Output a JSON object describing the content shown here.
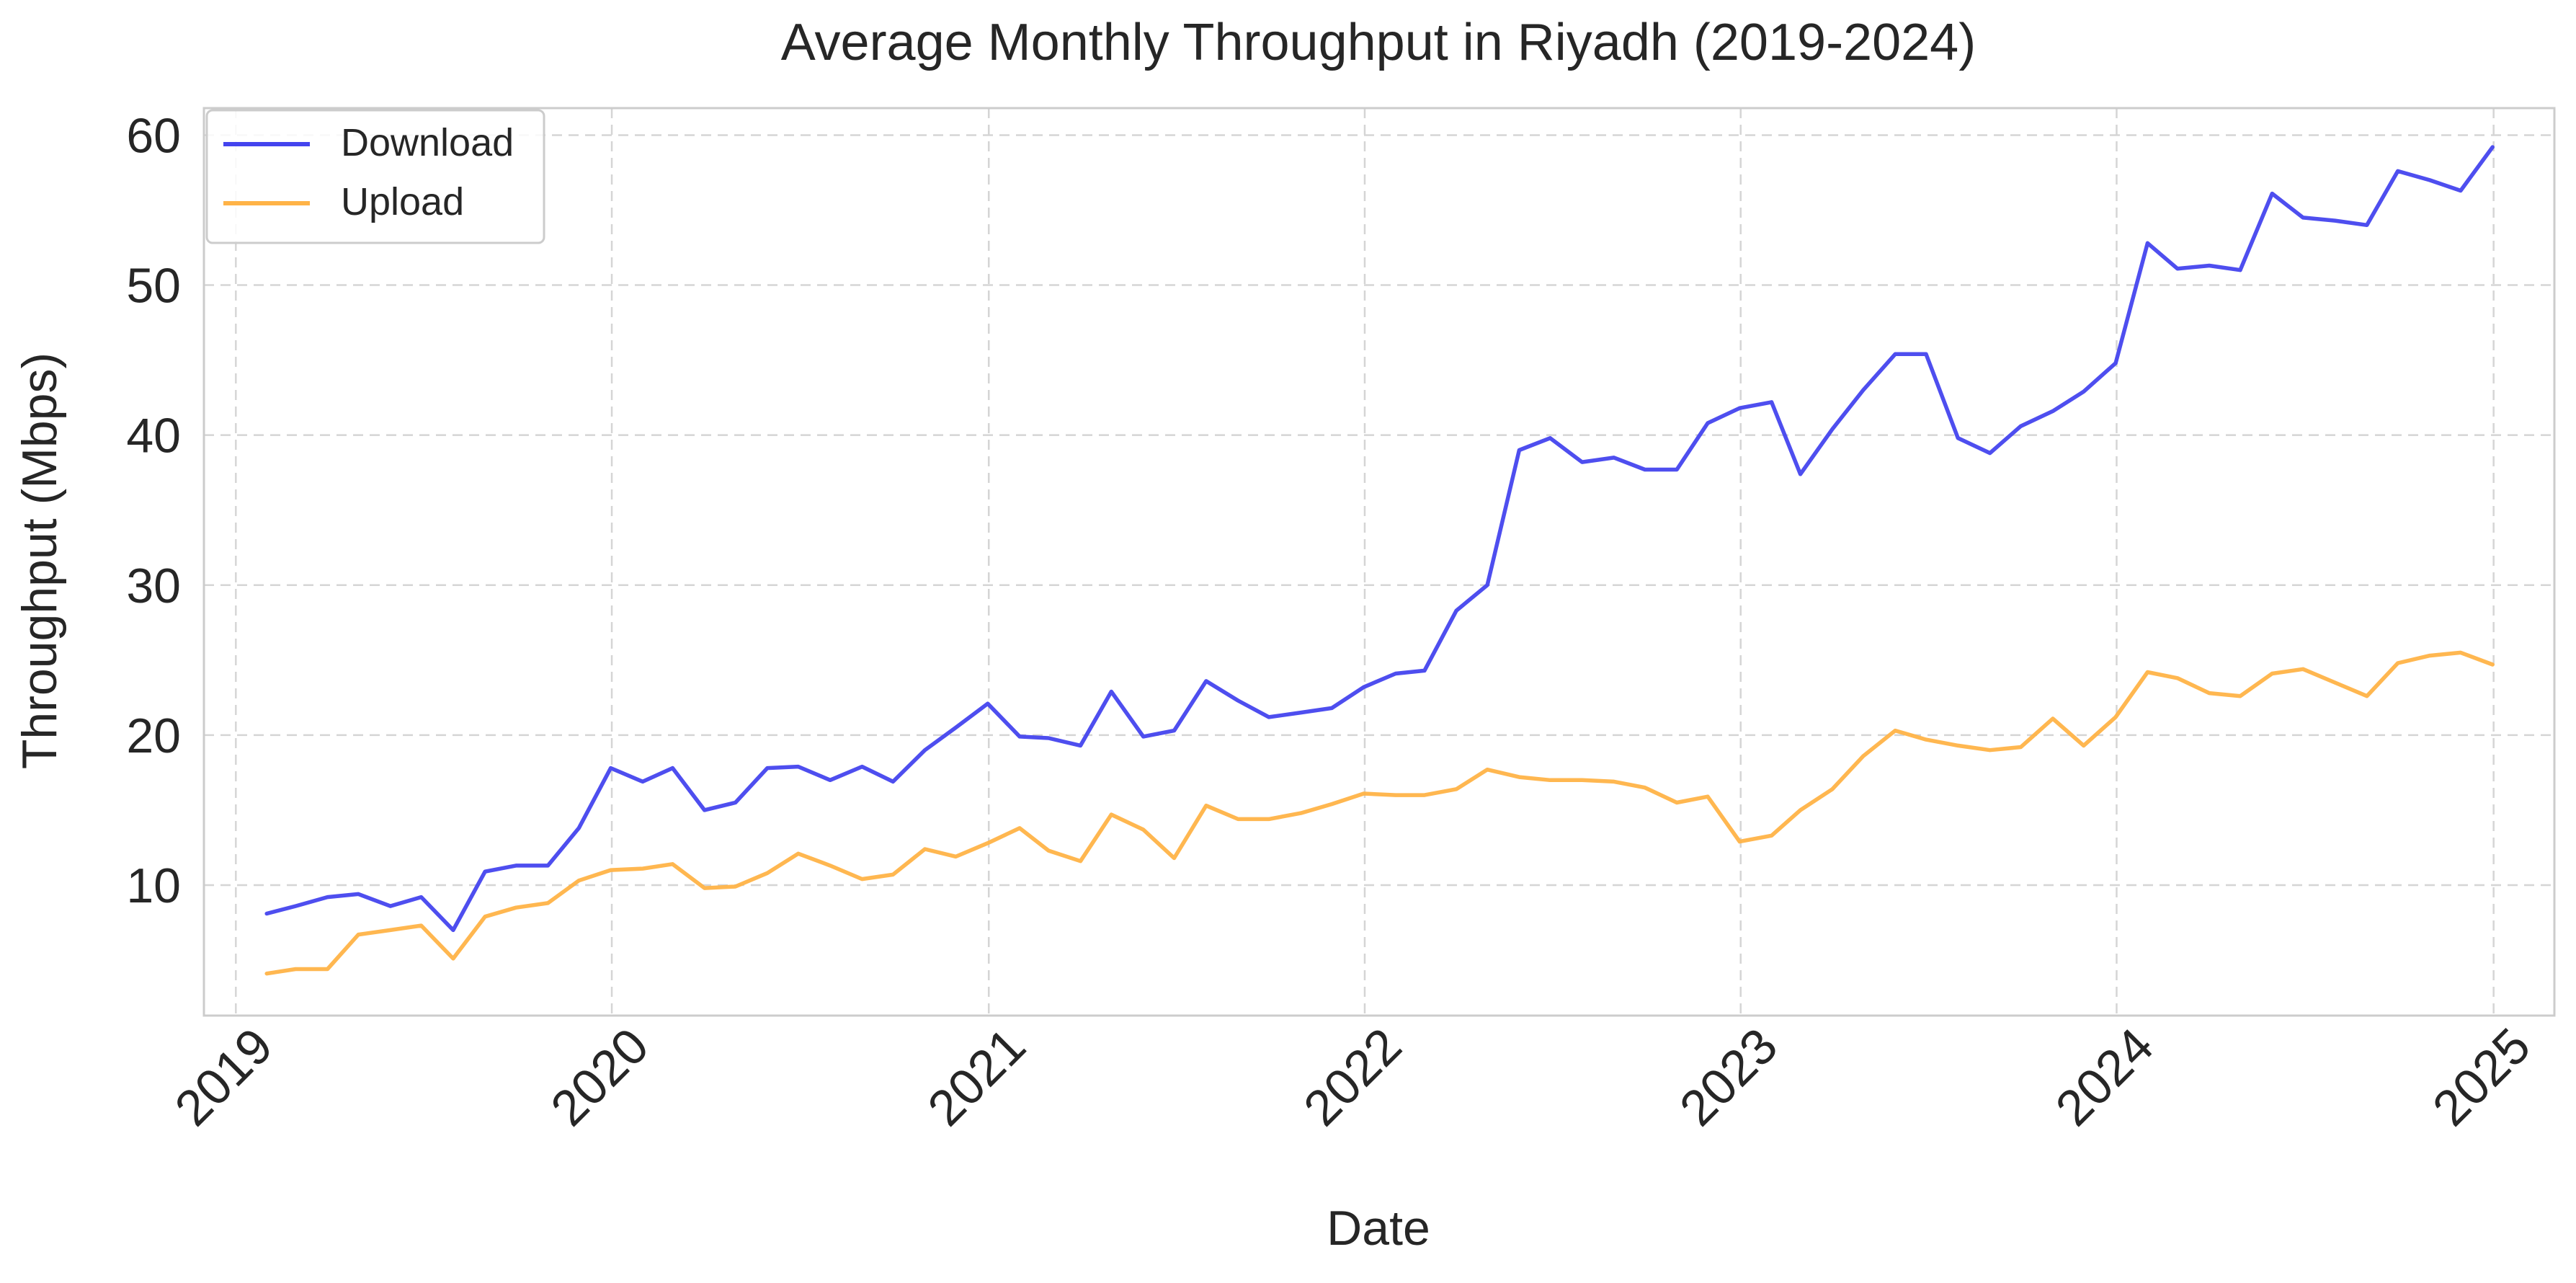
{
  "chart_data": {
    "type": "line",
    "title": "Average Monthly Throughput in Riyadh (2019-2024)",
    "xlabel": "Date",
    "ylabel": "Throughput (Mbps)",
    "xlim": [
      "2018-12-01",
      "2025-03-01"
    ],
    "ylim": [
      1.3,
      61.8
    ],
    "x_ticks": [
      {
        "date": "2019-01-01",
        "label": "2019"
      },
      {
        "date": "2020-01-01",
        "label": "2020"
      },
      {
        "date": "2021-01-01",
        "label": "2021"
      },
      {
        "date": "2022-01-01",
        "label": "2022"
      },
      {
        "date": "2023-01-01",
        "label": "2023"
      },
      {
        "date": "2024-01-01",
        "label": "2024"
      },
      {
        "date": "2025-01-01",
        "label": "2025"
      }
    ],
    "y_ticks": [
      10,
      20,
      30,
      40,
      50,
      60
    ],
    "grid": true,
    "legend_position": "top-left",
    "x": [
      "2019-01-31",
      "2019-02-28",
      "2019-03-31",
      "2019-04-30",
      "2019-05-31",
      "2019-06-30",
      "2019-07-31",
      "2019-08-31",
      "2019-09-30",
      "2019-10-31",
      "2019-11-30",
      "2019-12-31",
      "2020-01-31",
      "2020-02-29",
      "2020-03-31",
      "2020-04-30",
      "2020-05-31",
      "2020-06-30",
      "2020-07-31",
      "2020-08-31",
      "2020-09-30",
      "2020-10-31",
      "2020-11-30",
      "2020-12-31",
      "2021-01-31",
      "2021-02-28",
      "2021-03-31",
      "2021-04-30",
      "2021-05-31",
      "2021-06-30",
      "2021-07-31",
      "2021-08-31",
      "2021-09-30",
      "2021-10-31",
      "2021-11-30",
      "2021-12-31",
      "2022-01-31",
      "2022-02-28",
      "2022-03-31",
      "2022-04-30",
      "2022-05-31",
      "2022-06-30",
      "2022-07-31",
      "2022-08-31",
      "2022-09-30",
      "2022-10-31",
      "2022-11-30",
      "2022-12-31",
      "2023-01-31",
      "2023-02-28",
      "2023-03-31",
      "2023-04-30",
      "2023-05-31",
      "2023-06-30",
      "2023-07-31",
      "2023-08-31",
      "2023-09-30",
      "2023-10-31",
      "2023-11-30",
      "2023-12-31",
      "2024-01-31",
      "2024-02-29",
      "2024-03-31",
      "2024-04-30",
      "2024-05-31",
      "2024-06-30",
      "2024-07-31",
      "2024-08-31",
      "2024-09-30",
      "2024-10-31",
      "2024-11-30",
      "2024-12-31"
    ],
    "series": [
      {
        "name": "Download",
        "color": "#4444ee",
        "values": [
          8.1,
          8.6,
          9.2,
          9.4,
          8.6,
          9.2,
          7.0,
          10.9,
          11.3,
          11.3,
          13.8,
          17.8,
          16.9,
          17.8,
          15.0,
          15.5,
          17.8,
          17.9,
          17.0,
          17.9,
          16.9,
          19.0,
          20.5,
          22.1,
          19.9,
          19.8,
          19.3,
          22.9,
          19.9,
          20.3,
          23.6,
          22.3,
          21.2,
          21.5,
          21.8,
          23.2,
          24.1,
          24.3,
          28.3,
          30.0,
          39.0,
          39.8,
          38.2,
          38.5,
          37.7,
          37.7,
          40.8,
          41.8,
          42.2,
          37.4,
          40.4,
          43.0,
          45.4,
          45.4,
          39.8,
          38.8,
          40.6,
          41.6,
          42.9,
          44.8,
          52.8,
          51.1,
          51.3,
          51.0,
          56.1,
          54.5,
          54.3,
          54.0,
          57.6,
          57.0,
          56.3,
          59.2
        ]
      },
      {
        "name": "Upload",
        "color": "#ffb347",
        "values": [
          4.1,
          4.4,
          4.4,
          6.7,
          7.0,
          7.3,
          5.1,
          7.9,
          8.5,
          8.8,
          10.3,
          11.0,
          11.1,
          11.4,
          9.8,
          9.9,
          10.8,
          12.1,
          11.3,
          10.4,
          10.7,
          12.4,
          11.9,
          12.8,
          13.8,
          12.3,
          11.6,
          14.7,
          13.7,
          11.8,
          15.3,
          14.4,
          14.4,
          14.8,
          15.4,
          16.1,
          16.0,
          16.0,
          16.4,
          17.7,
          17.2,
          17.0,
          17.0,
          16.9,
          16.5,
          15.5,
          15.9,
          12.9,
          13.3,
          15.0,
          16.4,
          18.6,
          20.3,
          19.7,
          19.3,
          19.0,
          19.2,
          21.1,
          19.3,
          21.2,
          24.2,
          23.8,
          22.8,
          22.6,
          24.1,
          24.4,
          23.5,
          22.6,
          24.8,
          25.3,
          25.5,
          24.7
        ]
      }
    ]
  }
}
